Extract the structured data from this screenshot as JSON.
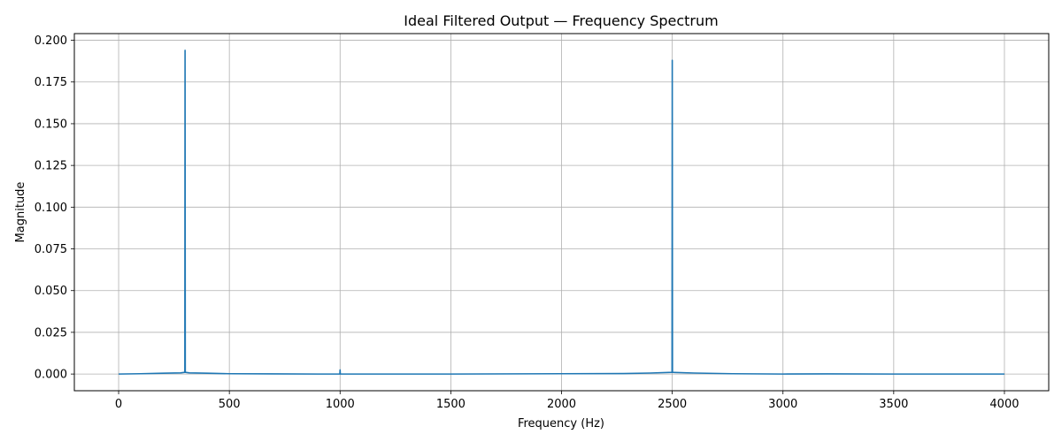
{
  "chart_data": {
    "type": "line",
    "title": "Ideal Filtered Output — Frequency Spectrum",
    "xlabel": "Frequency (Hz)",
    "ylabel": "Magnitude",
    "xlim": [
      -200,
      4200
    ],
    "ylim": [
      -0.01,
      0.204
    ],
    "grid": true,
    "x_ticks": [
      0,
      500,
      1000,
      1500,
      2000,
      2500,
      3000,
      3500,
      4000
    ],
    "x_tick_labels": [
      "0",
      "500",
      "1000",
      "1500",
      "2000",
      "2500",
      "3000",
      "3500",
      "4000"
    ],
    "y_ticks": [
      0.0,
      0.025,
      0.05,
      0.075,
      0.1,
      0.125,
      0.15,
      0.175,
      0.2
    ],
    "y_tick_labels": [
      "0.000",
      "0.025",
      "0.050",
      "0.075",
      "0.100",
      "0.125",
      "0.150",
      "0.175",
      "0.200"
    ],
    "series": [
      {
        "color": "#1f77b4",
        "x": [
          0,
          100,
          200,
          280,
          299,
          300,
          301,
          320,
          400,
          500,
          700,
          900,
          999,
          1000,
          1001,
          1200,
          1500,
          2000,
          2280,
          2400,
          2499,
          2500,
          2501,
          2600,
          2770,
          3000,
          3200,
          3500,
          4000
        ],
        "y": [
          0.0,
          0.0002,
          0.0005,
          0.0007,
          0.001,
          0.194,
          0.001,
          0.0007,
          0.0005,
          0.0002,
          0.0001,
          0.0,
          0.0,
          0.0025,
          0.0,
          0.0,
          0.0,
          0.0002,
          0.0003,
          0.0006,
          0.001,
          0.188,
          0.001,
          0.0006,
          0.0002,
          0.0,
          0.0001,
          0.0,
          0.0
        ]
      }
    ]
  }
}
